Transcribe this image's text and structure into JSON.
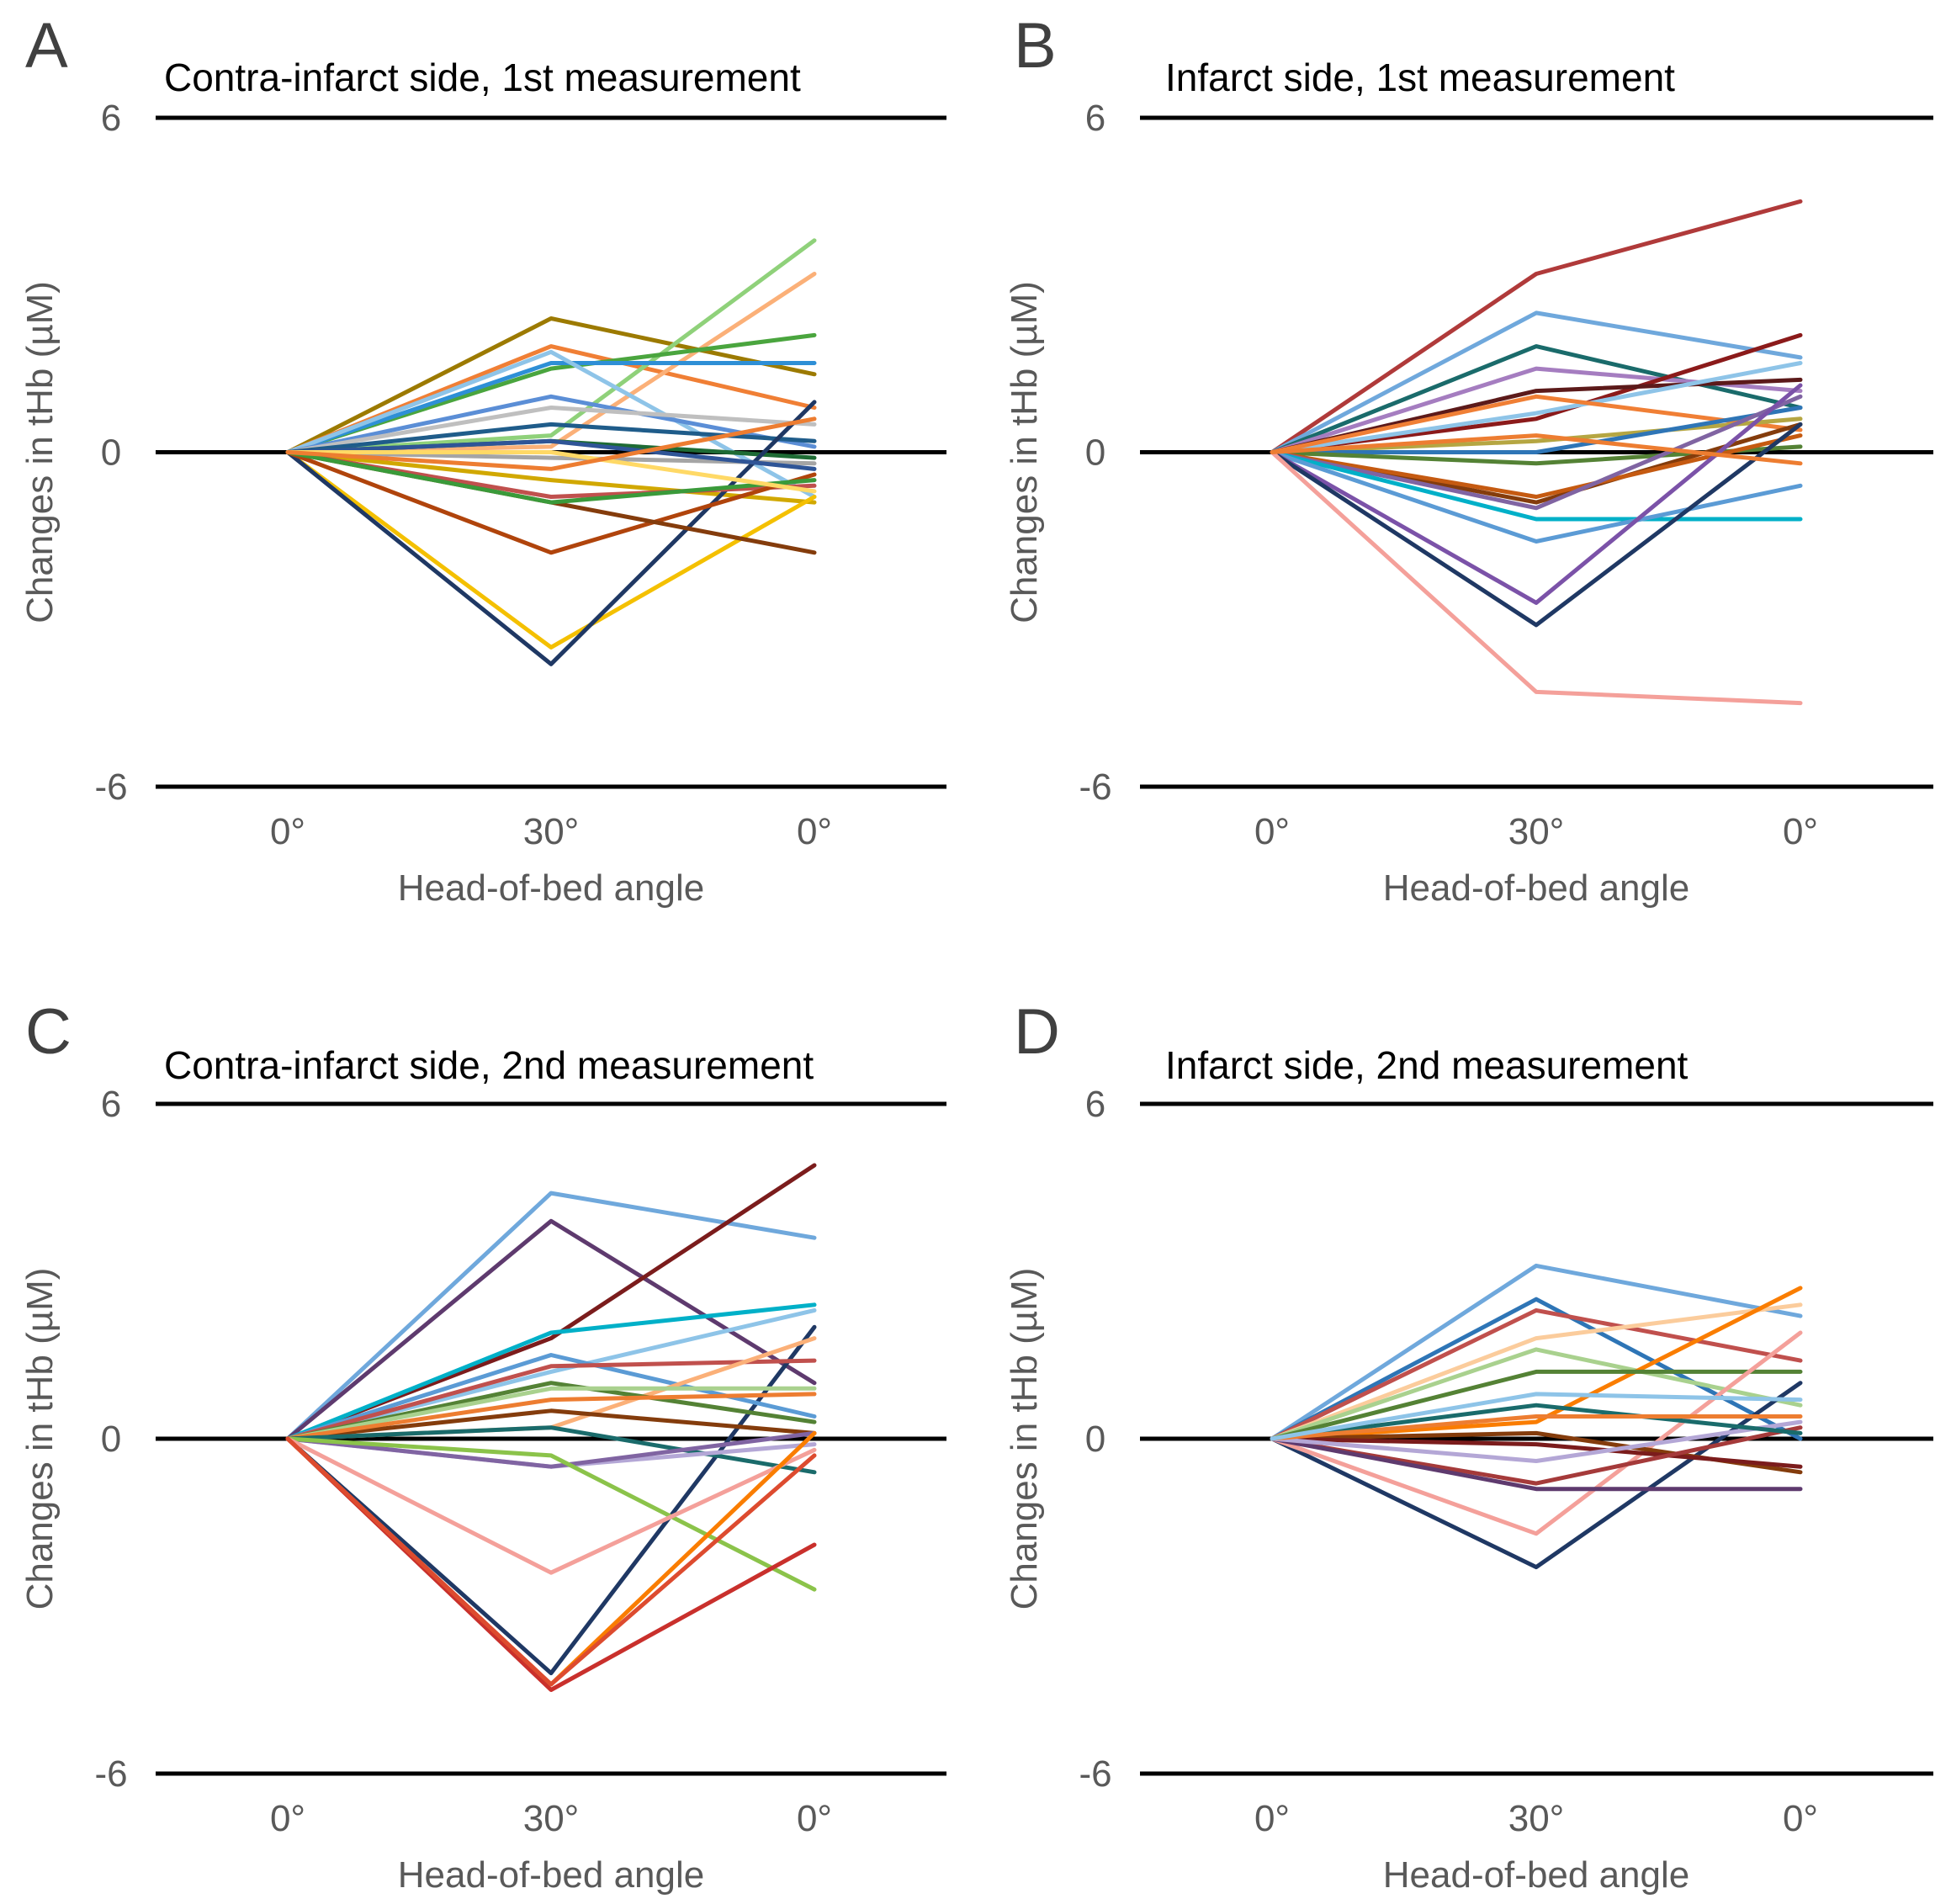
{
  "figure": {
    "description_labels": [
      "A",
      "B",
      "C",
      "D"
    ]
  },
  "chart_data": [
    {
      "type": "line",
      "panel": "A",
      "title": "Contra-infarct side, 1st measurement",
      "xlabel": "Head-of-bed angle",
      "ylabel": "Changes in tHb (µM)",
      "categories": [
        "0°",
        "30°",
        "0°"
      ],
      "yticks": [
        "6",
        "0",
        "-6"
      ],
      "ylim": [
        -6,
        6
      ],
      "series": [
        {
          "color": "#9c7a00",
          "values": [
            0,
            2.4,
            1.4
          ]
        },
        {
          "color": "#f07f35",
          "values": [
            0,
            1.9,
            0.8
          ]
        },
        {
          "color": "#8fd17a",
          "values": [
            0,
            0.3,
            3.8
          ]
        },
        {
          "color": "#fbb078",
          "values": [
            0,
            0.1,
            3.2
          ]
        },
        {
          "color": "#4aa53e",
          "values": [
            0,
            1.5,
            2.1
          ]
        },
        {
          "color": "#2e8fd6",
          "values": [
            0,
            1.6,
            1.6
          ]
        },
        {
          "color": "#8ec4e8",
          "values": [
            0,
            1.8,
            -0.8
          ]
        },
        {
          "color": "#5b8ed6",
          "values": [
            0,
            1.0,
            0.1
          ]
        },
        {
          "color": "#bfbfbf",
          "values": [
            0,
            0.8,
            0.5
          ]
        },
        {
          "color": "#1f5c8a",
          "values": [
            0,
            0.5,
            0.2
          ]
        },
        {
          "color": "#1e6b34",
          "values": [
            0,
            0.2,
            -0.1
          ]
        },
        {
          "color": "#d1a800",
          "values": [
            0,
            -0.5,
            -0.9
          ]
        },
        {
          "color": "#a5a5a5",
          "values": [
            0,
            -0.1,
            -0.2
          ]
        },
        {
          "color": "#f4c000",
          "values": [
            0,
            -3.5,
            -0.8
          ]
        },
        {
          "color": "#1f3864",
          "values": [
            0,
            -3.8,
            0.9
          ]
        },
        {
          "color": "#c0504d",
          "values": [
            0,
            -0.8,
            -0.6
          ]
        },
        {
          "color": "#b0440c",
          "values": [
            0,
            -1.8,
            -0.4
          ]
        },
        {
          "color": "#843c0c",
          "values": [
            0,
            -0.9,
            -1.8
          ]
        },
        {
          "color": "#3a9a3a",
          "values": [
            0,
            -0.9,
            -0.5
          ]
        },
        {
          "color": "#2f5597",
          "values": [
            0,
            0.2,
            -0.3
          ]
        },
        {
          "color": "#ffd966",
          "values": [
            0,
            0.0,
            -0.7
          ]
        },
        {
          "color": "#ed7d31",
          "values": [
            0,
            -0.3,
            0.6
          ]
        }
      ]
    },
    {
      "type": "line",
      "panel": "B",
      "title": "Infarct side, 1st measurement",
      "xlabel": "Head-of-bed angle",
      "ylabel": "Changes in tHb (µM)",
      "categories": [
        "0°",
        "30°",
        "0°"
      ],
      "yticks": [
        "6",
        "0",
        "-6"
      ],
      "ylim": [
        -6,
        6
      ],
      "series": [
        {
          "color": "#b03a3a",
          "values": [
            0,
            3.2,
            4.5
          ]
        },
        {
          "color": "#6fa8dc",
          "values": [
            0,
            2.5,
            1.7
          ]
        },
        {
          "color": "#1a6b6b",
          "values": [
            0,
            1.9,
            0.8
          ]
        },
        {
          "color": "#a57dc0",
          "values": [
            0,
            1.5,
            1.1
          ]
        },
        {
          "color": "#8b1a1a",
          "values": [
            0,
            0.6,
            2.1
          ]
        },
        {
          "color": "#5c1a1a",
          "values": [
            0,
            1.1,
            1.3
          ]
        },
        {
          "color": "#8ec4e8",
          "values": [
            0,
            0.7,
            1.6
          ]
        },
        {
          "color": "#f07f35",
          "values": [
            0,
            1.0,
            0.4
          ]
        },
        {
          "color": "#b5a642",
          "values": [
            0,
            0.2,
            0.6
          ]
        },
        {
          "color": "#2e75b6",
          "values": [
            0,
            0.0,
            0.8
          ]
        },
        {
          "color": "#548235",
          "values": [
            0,
            -0.2,
            0.1
          ]
        },
        {
          "color": "#843c0c",
          "values": [
            0,
            -0.9,
            0.5
          ]
        },
        {
          "color": "#c55a11",
          "values": [
            0,
            -0.8,
            0.3
          ]
        },
        {
          "color": "#8064a2",
          "values": [
            0,
            -1.0,
            1.0
          ]
        },
        {
          "color": "#00b0c8",
          "values": [
            0,
            -1.2,
            -1.2
          ]
        },
        {
          "color": "#5b9bd5",
          "values": [
            0,
            -1.6,
            -0.6
          ]
        },
        {
          "color": "#7b52a8",
          "values": [
            0,
            -2.7,
            1.2
          ]
        },
        {
          "color": "#1f3864",
          "values": [
            0,
            -3.1,
            0.5
          ]
        },
        {
          "color": "#f4a09a",
          "values": [
            0,
            -4.3,
            -4.5
          ]
        },
        {
          "color": "#ed7d31",
          "values": [
            0,
            0.3,
            -0.2
          ]
        }
      ]
    },
    {
      "type": "line",
      "panel": "C",
      "title": "Contra-infarct side, 2nd measurement",
      "xlabel": "Head-of-bed angle",
      "ylabel": "Changes in tHb (µM)",
      "categories": [
        "0°",
        "30°",
        "0°"
      ],
      "yticks": [
        "6",
        "0",
        "-6"
      ],
      "ylim": [
        -6,
        6
      ],
      "series": [
        {
          "color": "#6fa8dc",
          "values": [
            0,
            4.4,
            3.6
          ]
        },
        {
          "color": "#5e3a6e",
          "values": [
            0,
            3.9,
            1.0
          ]
        },
        {
          "color": "#7b1c1c",
          "values": [
            0,
            1.8,
            4.9
          ]
        },
        {
          "color": "#00b0c8",
          "values": [
            0,
            1.9,
            2.4
          ]
        },
        {
          "color": "#8ec4e8",
          "values": [
            0,
            1.2,
            2.3
          ]
        },
        {
          "color": "#1f3864",
          "values": [
            0,
            -4.2,
            2.0
          ]
        },
        {
          "color": "#5b9bd5",
          "values": [
            0,
            1.5,
            0.4
          ]
        },
        {
          "color": "#c0504d",
          "values": [
            0,
            1.3,
            1.4
          ]
        },
        {
          "color": "#fbb078",
          "values": [
            0,
            0.2,
            1.8
          ]
        },
        {
          "color": "#548235",
          "values": [
            0,
            1.0,
            0.3
          ]
        },
        {
          "color": "#a9d18e",
          "values": [
            0,
            0.9,
            0.9
          ]
        },
        {
          "color": "#843c0c",
          "values": [
            0,
            0.5,
            0.1
          ]
        },
        {
          "color": "#ed7d31",
          "values": [
            0,
            0.7,
            0.8
          ]
        },
        {
          "color": "#1a6b6b",
          "values": [
            0,
            0.2,
            -0.6
          ]
        },
        {
          "color": "#b4a7d6",
          "values": [
            0,
            -0.5,
            -0.1
          ]
        },
        {
          "color": "#8064a2",
          "values": [
            0,
            -0.5,
            0.1
          ]
        },
        {
          "color": "#8bc34a",
          "values": [
            0,
            -0.3,
            -2.7
          ]
        },
        {
          "color": "#f4a09a",
          "values": [
            0,
            -2.4,
            -0.2
          ]
        },
        {
          "color": "#c9302c",
          "values": [
            0,
            -4.5,
            -1.9
          ]
        },
        {
          "color": "#fa7d00",
          "values": [
            0,
            -4.4,
            0.1
          ]
        },
        {
          "color": "#dd4b2f",
          "values": [
            0,
            -4.4,
            -0.3
          ]
        }
      ]
    },
    {
      "type": "line",
      "panel": "D",
      "title": "Infarct side, 2nd measurement",
      "xlabel": "Head-of-bed angle",
      "ylabel": "Changes in tHb (µM)",
      "categories": [
        "0°",
        "30°",
        "0°"
      ],
      "yticks": [
        "6",
        "0",
        "-6"
      ],
      "ylim": [
        -6,
        6
      ],
      "series": [
        {
          "color": "#6fa8dc",
          "values": [
            0,
            3.1,
            2.2
          ]
        },
        {
          "color": "#2e75b6",
          "values": [
            0,
            2.5,
            0.0
          ]
        },
        {
          "color": "#c0504d",
          "values": [
            0,
            2.3,
            1.4
          ]
        },
        {
          "color": "#fbcc9c",
          "values": [
            0,
            1.8,
            2.4
          ]
        },
        {
          "color": "#a9d18e",
          "values": [
            0,
            1.6,
            0.6
          ]
        },
        {
          "color": "#fa7d00",
          "values": [
            0,
            0.3,
            2.7
          ]
        },
        {
          "color": "#548235",
          "values": [
            0,
            1.2,
            1.2
          ]
        },
        {
          "color": "#1f3864",
          "values": [
            0,
            -2.3,
            1.0
          ]
        },
        {
          "color": "#f4a09a",
          "values": [
            0,
            -1.7,
            1.9
          ]
        },
        {
          "color": "#843c0c",
          "values": [
            0,
            0.1,
            -0.6
          ]
        },
        {
          "color": "#7b1c1c",
          "values": [
            0,
            -0.1,
            -0.5
          ]
        },
        {
          "color": "#a53a3a",
          "values": [
            0,
            -0.8,
            0.2
          ]
        },
        {
          "color": "#5e3a6e",
          "values": [
            0,
            -0.9,
            -0.9
          ]
        },
        {
          "color": "#b4a7d6",
          "values": [
            0,
            -0.4,
            0.3
          ]
        },
        {
          "color": "#1a6b6b",
          "values": [
            0,
            0.6,
            0.1
          ]
        },
        {
          "color": "#ed7d31",
          "values": [
            0,
            0.4,
            0.4
          ]
        },
        {
          "color": "#8ec4e8",
          "values": [
            0,
            0.8,
            0.7
          ]
        }
      ]
    }
  ]
}
